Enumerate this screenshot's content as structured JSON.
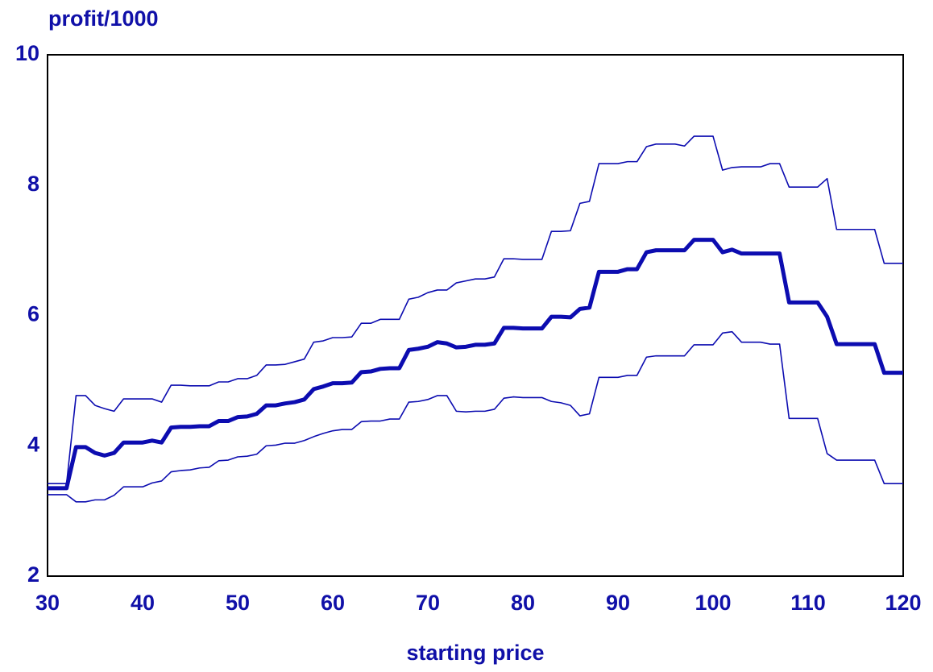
{
  "chart_data": {
    "type": "line",
    "y_label": "profit/1000",
    "x_label": "starting price",
    "xlim": [
      30,
      120
    ],
    "xticks": [
      30,
      40,
      50,
      60,
      70,
      80,
      90,
      100,
      110,
      120
    ],
    "ylim": [
      2,
      10
    ],
    "yticks": [
      2,
      4,
      6,
      8,
      10
    ],
    "grid": false,
    "x": [
      30,
      31,
      32,
      33,
      34,
      35,
      36,
      37,
      38,
      39,
      40,
      41,
      42,
      43,
      44,
      45,
      46,
      47,
      48,
      49,
      50,
      51,
      52,
      53,
      54,
      55,
      56,
      57,
      58,
      59,
      60,
      61,
      62,
      63,
      64,
      65,
      66,
      67,
      68,
      69,
      70,
      71,
      72,
      73,
      74,
      75,
      76,
      77,
      78,
      79,
      80,
      81,
      82,
      83,
      84,
      85,
      86,
      87,
      88,
      89,
      90,
      91,
      92,
      93,
      94,
      95,
      96,
      97,
      98,
      99,
      100,
      101,
      102,
      103,
      104,
      105,
      106,
      107,
      108,
      109,
      110,
      111,
      112,
      113,
      114,
      115,
      116,
      117,
      118,
      119,
      120
    ],
    "series": [
      {
        "color": "#0c0cb0",
        "values": [
          3.35,
          3.35,
          3.35,
          3.98,
          3.98,
          3.89,
          3.85,
          3.89,
          4.05,
          4.05,
          4.05,
          4.08,
          4.05,
          4.28,
          4.29,
          4.29,
          4.3,
          4.3,
          4.38,
          4.38,
          4.44,
          4.45,
          4.49,
          4.62,
          4.62,
          4.65,
          4.67,
          4.71,
          4.87,
          4.91,
          4.96,
          4.96,
          4.97,
          5.13,
          5.14,
          5.18,
          5.19,
          5.19,
          5.47,
          5.49,
          5.52,
          5.59,
          5.57,
          5.51,
          5.52,
          5.55,
          5.55,
          5.57,
          5.81,
          5.81,
          5.8,
          5.8,
          5.8,
          5.98,
          5.98,
          5.97,
          6.1,
          6.12,
          6.67,
          6.67,
          6.67,
          6.71,
          6.71,
          6.97,
          7.0,
          7.0,
          7.0,
          7.0,
          7.16,
          7.16,
          7.16,
          6.97,
          7.01,
          6.95,
          6.95,
          6.95,
          6.95,
          6.95,
          6.2,
          6.2,
          6.2,
          6.2,
          5.98,
          5.56,
          5.56,
          5.56,
          5.56,
          5.56,
          5.12,
          5.12,
          5.12
        ]
      },
      {
        "color": "#0c0cb0",
        "values": [
          3.42,
          3.42,
          3.42,
          4.77,
          4.77,
          4.62,
          4.57,
          4.53,
          4.72,
          4.72,
          4.72,
          4.72,
          4.67,
          4.93,
          4.93,
          4.92,
          4.92,
          4.92,
          4.98,
          4.98,
          5.03,
          5.03,
          5.08,
          5.24,
          5.24,
          5.25,
          5.29,
          5.33,
          5.59,
          5.61,
          5.66,
          5.66,
          5.67,
          5.88,
          5.88,
          5.94,
          5.94,
          5.94,
          6.25,
          6.28,
          6.35,
          6.39,
          6.39,
          6.5,
          6.53,
          6.56,
          6.56,
          6.59,
          6.87,
          6.87,
          6.86,
          6.86,
          6.86,
          7.29,
          7.29,
          7.3,
          7.72,
          7.75,
          8.33,
          8.33,
          8.33,
          8.36,
          8.36,
          8.59,
          8.63,
          8.63,
          8.63,
          8.6,
          8.75,
          8.75,
          8.75,
          8.23,
          8.27,
          8.28,
          8.28,
          8.28,
          8.33,
          8.33,
          7.97,
          7.97,
          7.97,
          7.97,
          8.1,
          7.32,
          7.32,
          7.32,
          7.32,
          7.32,
          6.8,
          6.8,
          6.8
        ]
      },
      {
        "color": "#0c0cb0",
        "values": [
          3.25,
          3.25,
          3.25,
          3.14,
          3.14,
          3.17,
          3.17,
          3.24,
          3.37,
          3.37,
          3.37,
          3.43,
          3.46,
          3.6,
          3.62,
          3.63,
          3.66,
          3.67,
          3.77,
          3.78,
          3.83,
          3.84,
          3.87,
          4.0,
          4.01,
          4.04,
          4.04,
          4.08,
          4.14,
          4.19,
          4.23,
          4.25,
          4.25,
          4.37,
          4.38,
          4.38,
          4.41,
          4.41,
          4.67,
          4.68,
          4.71,
          4.77,
          4.77,
          4.53,
          4.52,
          4.53,
          4.53,
          4.56,
          4.73,
          4.75,
          4.74,
          4.74,
          4.74,
          4.68,
          4.66,
          4.62,
          4.46,
          4.49,
          5.05,
          5.05,
          5.05,
          5.08,
          5.08,
          5.36,
          5.38,
          5.38,
          5.38,
          5.38,
          5.55,
          5.55,
          5.55,
          5.73,
          5.75,
          5.59,
          5.59,
          5.59,
          5.56,
          5.56,
          4.42,
          4.42,
          4.42,
          4.42,
          3.88,
          3.78,
          3.78,
          3.78,
          3.78,
          3.78,
          3.42,
          3.42,
          3.42
        ]
      }
    ]
  }
}
